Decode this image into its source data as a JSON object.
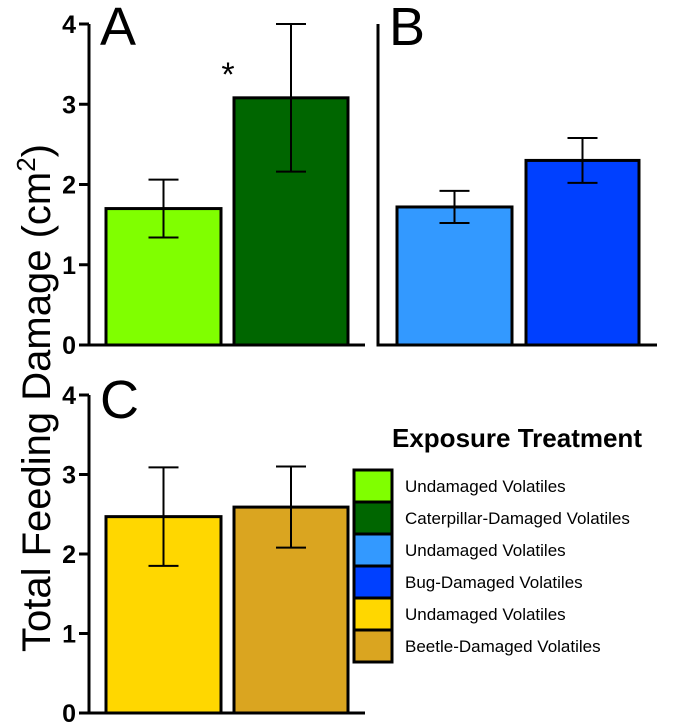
{
  "y_axis_label": "Total Feeding Damage (cm",
  "y_axis_label_sup": "2",
  "y_axis_label_close": ")",
  "chart_data": [
    {
      "type": "bar",
      "panel": "A",
      "categories": [
        "Undamaged Volatiles",
        "Caterpillar-Damaged Volatiles"
      ],
      "values": [
        1.7,
        3.08
      ],
      "errors": [
        0.36,
        0.92
      ],
      "colors": [
        "#80ff00",
        "#006600"
      ],
      "annotations": [
        {
          "category_index": 1,
          "text": "*"
        }
      ],
      "ylim": [
        0,
        4
      ],
      "yticks": [
        "0",
        "1",
        "2",
        "3",
        "4"
      ],
      "ylabel": "Total Feeding Damage (cm2)"
    },
    {
      "type": "bar",
      "panel": "B",
      "categories": [
        "Undamaged Volatiles",
        "Bug-Damaged Volatiles"
      ],
      "values": [
        1.72,
        2.3
      ],
      "errors": [
        0.2,
        0.28
      ],
      "colors": [
        "#3399ff",
        "#0040ff"
      ],
      "annotations": [],
      "ylim": [
        0,
        4
      ],
      "yticks": [],
      "ylabel": ""
    },
    {
      "type": "bar",
      "panel": "C",
      "categories": [
        "Undamaged Volatiles",
        "Beetle-Damaged Volatiles"
      ],
      "values": [
        2.47,
        2.59
      ],
      "errors": [
        0.62,
        0.51
      ],
      "colors": [
        "#ffd700",
        "#daa520"
      ],
      "annotations": [],
      "ylim": [
        0,
        4
      ],
      "yticks": [
        "0",
        "1",
        "2",
        "3",
        "4"
      ],
      "ylabel": "Total Feeding Damage (cm2)"
    }
  ],
  "legend": {
    "title": "Exposure Treatment",
    "items": [
      {
        "label": "Undamaged Volatiles",
        "color": "#80ff00"
      },
      {
        "label": "Caterpillar-Damaged Volatiles",
        "color": "#006600"
      },
      {
        "label": "Undamaged Volatiles",
        "color": "#3399ff"
      },
      {
        "label": "Bug-Damaged Volatiles",
        "color": "#0040ff"
      },
      {
        "label": "Undamaged Volatiles",
        "color": "#ffd700"
      },
      {
        "label": "Beetle-Damaged Volatiles",
        "color": "#daa520"
      }
    ]
  }
}
